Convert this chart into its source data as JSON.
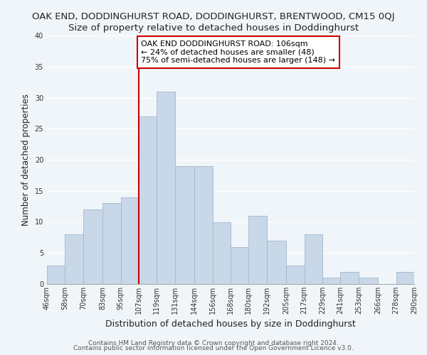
{
  "title": "OAK END, DODDINGHURST ROAD, DODDINGHURST, BRENTWOOD, CM15 0QJ",
  "subtitle": "Size of property relative to detached houses in Doddinghurst",
  "xlabel": "Distribution of detached houses by size in Doddinghurst",
  "ylabel": "Number of detached properties",
  "bin_labels": [
    "46sqm",
    "58sqm",
    "70sqm",
    "83sqm",
    "95sqm",
    "107sqm",
    "119sqm",
    "131sqm",
    "144sqm",
    "156sqm",
    "168sqm",
    "180sqm",
    "192sqm",
    "205sqm",
    "217sqm",
    "229sqm",
    "241sqm",
    "253sqm",
    "266sqm",
    "278sqm",
    "290sqm"
  ],
  "bin_edges": [
    46,
    58,
    70,
    83,
    95,
    107,
    119,
    131,
    144,
    156,
    168,
    180,
    192,
    205,
    217,
    229,
    241,
    253,
    266,
    278,
    290
  ],
  "counts": [
    3,
    8,
    12,
    13,
    14,
    27,
    31,
    19,
    19,
    10,
    6,
    11,
    7,
    3,
    8,
    1,
    2,
    1,
    0,
    2
  ],
  "bar_color": "#c8d8e8",
  "bar_edge_color": "#a0b8cc",
  "property_line_x": 107,
  "property_line_color": "#cc0000",
  "annotation_line1": "OAK END DODDINGHURST ROAD: 106sqm",
  "annotation_line2": "← 24% of detached houses are smaller (48)",
  "annotation_line3": "75% of semi-detached houses are larger (148) →",
  "annotation_box_color": "#ffffff",
  "annotation_box_edge_color": "#cc0000",
  "ylim": [
    0,
    40
  ],
  "yticks": [
    0,
    5,
    10,
    15,
    20,
    25,
    30,
    35,
    40
  ],
  "background_color": "#f0f5fa",
  "plot_background_color": "#f0f5fa",
  "grid_color": "#ffffff",
  "footer_line1": "Contains HM Land Registry data © Crown copyright and database right 2024.",
  "footer_line2": "Contains public sector information licensed under the Open Government Licence v3.0.",
  "title_fontsize": 9.5,
  "subtitle_fontsize": 9.5,
  "xlabel_fontsize": 9,
  "ylabel_fontsize": 8.5,
  "tick_fontsize": 7,
  "footer_fontsize": 6.5,
  "annotation_fontsize": 8
}
